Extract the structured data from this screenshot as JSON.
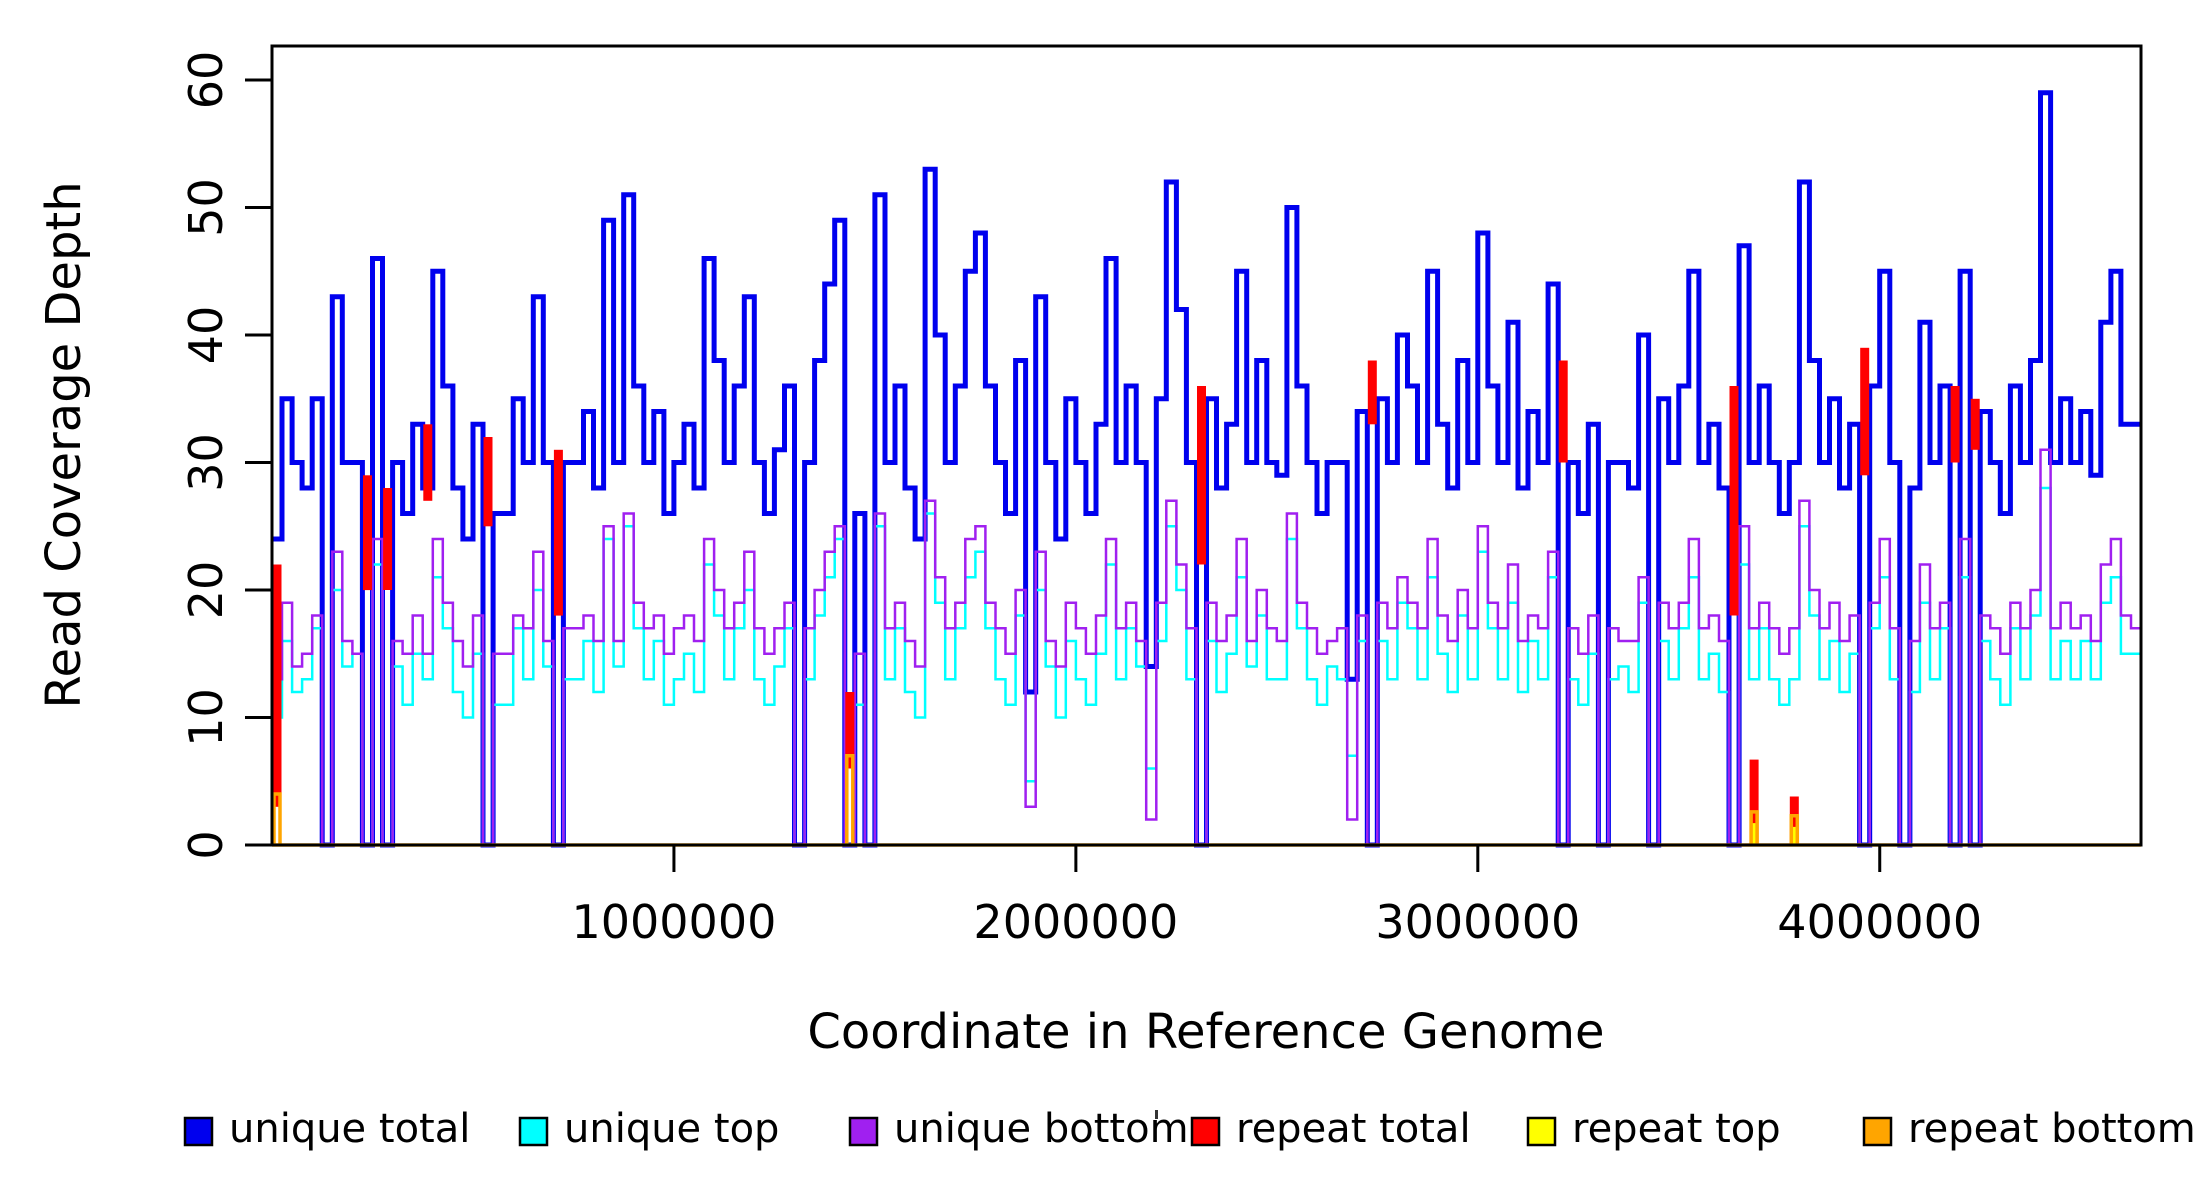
{
  "figure": {
    "background": "#ffffff"
  },
  "axes": {
    "y": {
      "label": "Read Coverage Depth",
      "ticks": [
        0,
        10,
        20,
        30,
        40,
        50,
        60
      ],
      "range": [
        0,
        62.7
      ]
    },
    "x": {
      "label": "Coordinate in Reference Genome",
      "ticks": [
        1000000,
        2000000,
        3000000,
        4000000
      ],
      "tick_labels": [
        "1000000",
        "2000000",
        "3000000",
        "4000000"
      ],
      "range": [
        0,
        4650000
      ]
    }
  },
  "legend": {
    "items": [
      {
        "label": "unique total",
        "color": "#0000EE"
      },
      {
        "label": "unique top",
        "color": "#00FFFF"
      },
      {
        "label": "unique bottom",
        "color": "#A020F0"
      },
      {
        "label": "repeat total",
        "color": "#FF0000"
      },
      {
        "label": "repeat top",
        "color": "#FFFF00"
      },
      {
        "label": "repeat bottom",
        "color": "#FFA500"
      }
    ]
  },
  "chart_data": {
    "type": "line",
    "step": "after",
    "title": "",
    "xlabel": "Coordinate in Reference Genome",
    "ylabel": "Read Coverage Depth",
    "xlim": [
      0,
      4650000
    ],
    "ylim": [
      0,
      62.7
    ],
    "grid": false,
    "legend_position": "bottom",
    "n_bins": 186,
    "bin_size_bp": 25000,
    "series": [
      {
        "name": "unique total",
        "color": "#0000EE",
        "line_width": 5,
        "values": [
          24,
          35,
          30,
          28,
          35,
          0,
          43,
          30,
          30,
          0,
          46,
          0,
          30,
          26,
          33,
          28,
          45,
          36,
          28,
          24,
          33,
          0,
          26,
          26,
          35,
          30,
          43,
          30,
          0,
          30,
          30,
          34,
          28,
          49,
          30,
          51,
          36,
          30,
          34,
          26,
          30,
          33,
          28,
          46,
          38,
          30,
          36,
          43,
          30,
          26,
          31,
          36,
          0,
          30,
          38,
          44,
          49,
          0,
          26,
          0,
          51,
          30,
          36,
          28,
          24,
          53,
          40,
          30,
          36,
          45,
          48,
          36,
          30,
          26,
          38,
          12,
          43,
          30,
          24,
          35,
          30,
          26,
          33,
          46,
          30,
          36,
          30,
          14,
          35,
          52,
          42,
          30,
          0,
          35,
          28,
          33,
          45,
          30,
          38,
          30,
          29,
          50,
          36,
          30,
          26,
          30,
          30,
          13,
          34,
          0,
          35,
          30,
          40,
          36,
          30,
          45,
          33,
          28,
          38,
          30,
          48,
          36,
          30,
          41,
          28,
          34,
          30,
          44,
          0,
          30,
          26,
          33,
          0,
          30,
          30,
          28,
          40,
          0,
          35,
          30,
          36,
          45,
          30,
          33,
          28,
          0,
          47,
          30,
          36,
          30,
          26,
          30,
          52,
          38,
          30,
          35,
          28,
          33,
          0,
          36,
          45,
          30,
          0,
          28,
          41,
          30,
          36,
          0,
          45,
          0,
          34,
          30,
          26,
          36,
          30,
          38,
          59,
          30,
          35,
          30,
          34,
          29,
          41,
          45,
          33,
          33
        ]
      },
      {
        "name": "unique top",
        "color": "#00FFFF",
        "line_width": 2.5,
        "values": [
          10,
          16,
          12,
          13,
          17,
          0,
          20,
          14,
          15,
          0,
          22,
          0,
          14,
          11,
          15,
          13,
          21,
          17,
          12,
          10,
          15,
          0,
          11,
          11,
          17,
          13,
          20,
          14,
          0,
          13,
          13,
          16,
          12,
          24,
          14,
          25,
          17,
          13,
          16,
          11,
          13,
          15,
          12,
          22,
          18,
          13,
          17,
          20,
          13,
          11,
          14,
          17,
          0,
          13,
          18,
          21,
          24,
          0,
          11,
          0,
          25,
          13,
          17,
          12,
          10,
          26,
          19,
          13,
          17,
          21,
          23,
          17,
          13,
          11,
          18,
          5,
          20,
          14,
          10,
          16,
          13,
          11,
          15,
          22,
          13,
          17,
          14,
          6,
          16,
          25,
          20,
          13,
          0,
          16,
          12,
          15,
          21,
          14,
          18,
          13,
          13,
          24,
          17,
          13,
          11,
          14,
          13,
          7,
          16,
          0,
          16,
          13,
          19,
          17,
          13,
          21,
          15,
          12,
          18,
          13,
          23,
          17,
          13,
          19,
          12,
          16,
          13,
          21,
          0,
          13,
          11,
          15,
          0,
          13,
          14,
          12,
          19,
          0,
          16,
          13,
          17,
          21,
          13,
          15,
          12,
          0,
          22,
          13,
          17,
          13,
          11,
          13,
          25,
          18,
          13,
          16,
          12,
          15,
          0,
          17,
          21,
          13,
          0,
          12,
          19,
          13,
          17,
          0,
          21,
          0,
          16,
          13,
          11,
          17,
          13,
          18,
          28,
          13,
          16,
          13,
          16,
          13,
          19,
          21,
          15,
          15
        ]
      },
      {
        "name": "unique bottom",
        "color": "#A020F0",
        "line_width": 2.5,
        "values": [
          13,
          19,
          14,
          15,
          18,
          0,
          23,
          16,
          15,
          0,
          24,
          0,
          16,
          15,
          18,
          15,
          24,
          19,
          16,
          14,
          18,
          0,
          15,
          15,
          18,
          17,
          23,
          16,
          0,
          17,
          17,
          18,
          16,
          25,
          16,
          26,
          19,
          17,
          18,
          15,
          17,
          18,
          16,
          24,
          20,
          17,
          19,
          23,
          17,
          15,
          17,
          19,
          0,
          17,
          20,
          23,
          25,
          0,
          15,
          0,
          26,
          17,
          19,
          16,
          14,
          27,
          21,
          17,
          19,
          24,
          25,
          19,
          17,
          15,
          20,
          3,
          23,
          16,
          14,
          19,
          17,
          15,
          18,
          24,
          17,
          19,
          16,
          2,
          19,
          27,
          22,
          17,
          0,
          19,
          16,
          18,
          24,
          16,
          20,
          17,
          16,
          26,
          19,
          17,
          15,
          16,
          17,
          2,
          18,
          0,
          19,
          17,
          21,
          19,
          17,
          24,
          18,
          16,
          20,
          17,
          25,
          19,
          17,
          22,
          16,
          18,
          17,
          23,
          0,
          17,
          15,
          18,
          0,
          17,
          16,
          16,
          21,
          0,
          19,
          17,
          19,
          24,
          17,
          18,
          16,
          0,
          25,
          17,
          19,
          17,
          15,
          17,
          27,
          20,
          17,
          19,
          16,
          18,
          0,
          19,
          24,
          17,
          0,
          16,
          22,
          17,
          19,
          0,
          24,
          0,
          18,
          17,
          15,
          19,
          17,
          20,
          31,
          17,
          19,
          17,
          18,
          16,
          22,
          24,
          18,
          17
        ]
      },
      {
        "name": "repeat total",
        "color": "#FF0000",
        "line_width": 6,
        "baseline": 0,
        "spikes": [
          [
            0,
            22,
            3
          ],
          [
            9,
            29,
            20
          ],
          [
            11,
            28,
            20
          ],
          [
            15,
            33,
            27
          ],
          [
            21,
            32,
            25
          ],
          [
            28,
            31,
            18
          ],
          [
            57,
            12,
            6
          ],
          [
            92,
            36,
            22
          ],
          [
            109,
            38,
            33
          ],
          [
            128,
            38,
            30
          ],
          [
            145,
            36,
            18
          ],
          [
            147,
            6.7,
            0
          ],
          [
            151,
            3.8,
            0
          ],
          [
            158,
            39,
            29
          ],
          [
            167,
            36,
            30
          ],
          [
            169,
            35,
            31
          ]
        ]
      },
      {
        "name": "repeat top",
        "color": "#FFFF00",
        "line_width": 3,
        "baseline": 0,
        "spikes": [
          [
            147,
            1.6,
            0
          ],
          [
            151,
            1.3,
            0
          ]
        ]
      },
      {
        "name": "repeat bottom",
        "color": "#FFA500",
        "line_width": 3.5,
        "baseline": 0,
        "spikes": [
          [
            0,
            4,
            0
          ],
          [
            57,
            7,
            0
          ],
          [
            147,
            2.6,
            0
          ],
          [
            151,
            2.3,
            0
          ]
        ]
      }
    ]
  }
}
